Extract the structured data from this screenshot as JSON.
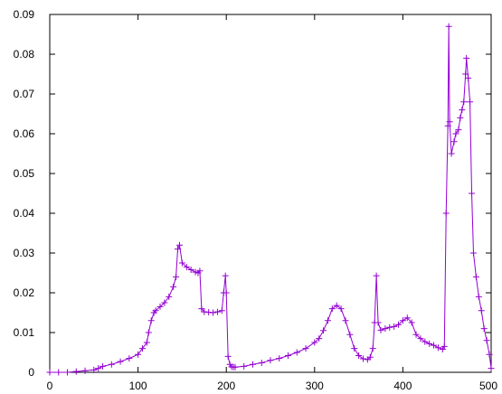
{
  "chart_data": {
    "type": "line",
    "title": "",
    "xlabel": "",
    "ylabel": "",
    "xlim": [
      0,
      500
    ],
    "ylim": [
      0,
      0.09
    ],
    "grid": false,
    "x_ticks": [
      "0",
      "100",
      "200",
      "300",
      "400",
      "500"
    ],
    "y_ticks": [
      "0",
      "0.01",
      "0.02",
      "0.03",
      "0.04",
      "0.05",
      "0.06",
      "0.07",
      "0.08",
      "0.09"
    ],
    "marker": "+",
    "series": [
      {
        "color": "#9400d3",
        "x": [
          0,
          10,
          20,
          30,
          40,
          50,
          55,
          60,
          70,
          80,
          90,
          100,
          105,
          110,
          112,
          115,
          118,
          120,
          125,
          130,
          135,
          140,
          143,
          145,
          147,
          150,
          155,
          160,
          165,
          168,
          170,
          172,
          175,
          180,
          185,
          190,
          195,
          197,
          199,
          200,
          202,
          204,
          206,
          208,
          210,
          220,
          230,
          240,
          250,
          260,
          270,
          280,
          290,
          300,
          305,
          310,
          315,
          320,
          325,
          330,
          335,
          340,
          345,
          350,
          355,
          360,
          363,
          366,
          368,
          370,
          372,
          375,
          380,
          385,
          390,
          395,
          400,
          405,
          410,
          415,
          420,
          425,
          430,
          435,
          440,
          445,
          447,
          449,
          451,
          452,
          453,
          455,
          458,
          460,
          463,
          465,
          467,
          469,
          471,
          472,
          474,
          476,
          478,
          480,
          483,
          486,
          489,
          492,
          495,
          498,
          500
        ],
        "y": [
          0,
          0,
          0,
          0.0002,
          0.0004,
          0.0006,
          0.001,
          0.0015,
          0.002,
          0.0027,
          0.0035,
          0.0045,
          0.006,
          0.0075,
          0.01,
          0.013,
          0.015,
          0.0155,
          0.0165,
          0.0175,
          0.019,
          0.0215,
          0.024,
          0.031,
          0.032,
          0.0275,
          0.0265,
          0.0258,
          0.0252,
          0.025,
          0.0255,
          0.016,
          0.0152,
          0.0151,
          0.015,
          0.0152,
          0.0155,
          0.02,
          0.0243,
          0.02,
          0.004,
          0.002,
          0.0014,
          0.0013,
          0.0013,
          0.0015,
          0.002,
          0.0024,
          0.003,
          0.0035,
          0.0042,
          0.005,
          0.006,
          0.0075,
          0.0085,
          0.0105,
          0.013,
          0.016,
          0.0168,
          0.016,
          0.013,
          0.0095,
          0.006,
          0.0042,
          0.0034,
          0.0032,
          0.0038,
          0.006,
          0.0125,
          0.0243,
          0.0125,
          0.0106,
          0.011,
          0.0113,
          0.0115,
          0.012,
          0.013,
          0.0137,
          0.0125,
          0.0095,
          0.0085,
          0.0077,
          0.0072,
          0.0068,
          0.0062,
          0.0058,
          0.0065,
          0.04,
          0.062,
          0.087,
          0.063,
          0.055,
          0.058,
          0.06,
          0.061,
          0.064,
          0.066,
          0.068,
          0.075,
          0.079,
          0.074,
          0.068,
          0.045,
          0.03,
          0.024,
          0.019,
          0.0155,
          0.011,
          0.008,
          0.0045,
          0.001
        ]
      }
    ]
  }
}
